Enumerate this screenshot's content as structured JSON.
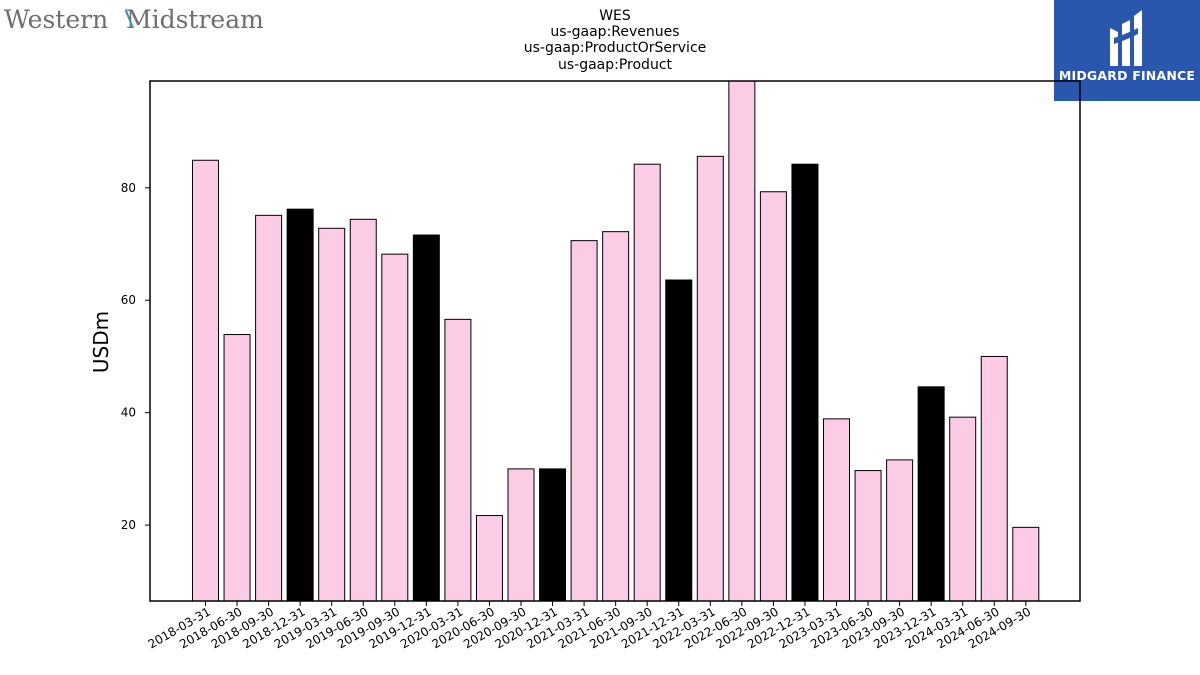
{
  "logo_left": {
    "text_main": "Western",
    "text_second": "Midstream"
  },
  "logo_right": {
    "text": "MIDGARD FINANCE"
  },
  "colors": {
    "highlight": "#000000",
    "normal": "#fccce6",
    "brand": "#2b56ad",
    "logo_text": "#6d6e71",
    "logo_accent": "#3b8fb5"
  },
  "chart_data": {
    "type": "bar",
    "title_lines": [
      "WES",
      "us-gaap:Revenues",
      "us-gaap:ProductOrService",
      "us-gaap:Product"
    ],
    "ylabel": "USDm",
    "xlabel": "",
    "ylim": [
      6.5,
      99
    ],
    "yticks": [
      20,
      40,
      60,
      80
    ],
    "grid": false,
    "categories": [
      "2018-03-31",
      "2018-06-30",
      "2018-09-30",
      "2018-12-31",
      "2019-03-31",
      "2019-06-30",
      "2019-09-30",
      "2019-12-31",
      "2020-03-31",
      "2020-06-30",
      "2020-09-30",
      "2020-12-31",
      "2021-03-31",
      "2021-06-30",
      "2021-09-30",
      "2021-12-31",
      "2022-03-31",
      "2022-06-30",
      "2022-09-30",
      "2022-12-31",
      "2023-03-31",
      "2023-06-30",
      "2023-09-30",
      "2023-12-31",
      "2024-03-31",
      "2024-06-30",
      "2024-09-30"
    ],
    "values": [
      84.9,
      53.9,
      75.1,
      76.2,
      72.8,
      74.4,
      68.2,
      71.6,
      56.6,
      21.7,
      30.0,
      30.0,
      70.6,
      72.2,
      84.2,
      63.6,
      85.6,
      99.0,
      79.3,
      84.2,
      38.9,
      29.7,
      31.6,
      44.6,
      39.2,
      50.0,
      19.6
    ],
    "highlighted": [
      false,
      false,
      false,
      true,
      false,
      false,
      false,
      true,
      false,
      false,
      false,
      true,
      false,
      false,
      false,
      true,
      false,
      false,
      false,
      true,
      false,
      false,
      false,
      true,
      false,
      false,
      false
    ]
  }
}
